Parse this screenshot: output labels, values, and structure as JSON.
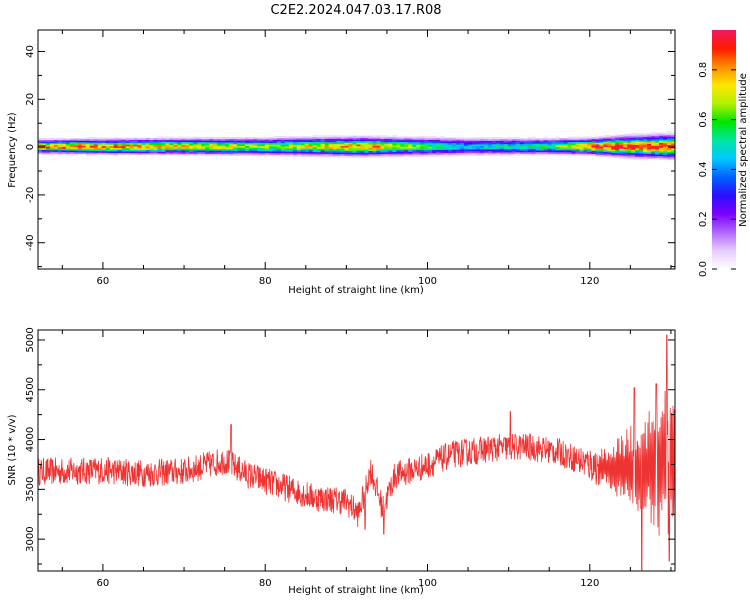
{
  "figure": {
    "title": "C2E2.2024.047.03.17.R08"
  },
  "colors": {
    "snr_line": "#ee3333",
    "axis": "#000000",
    "colormap": [
      "#ffffff",
      "#e4ccff",
      "#b266ff",
      "#7a00ff",
      "#2a10ff",
      "#0060ff",
      "#00c8ff",
      "#00e6a0",
      "#00e600",
      "#b4f000",
      "#ffe600",
      "#ff8c00",
      "#ff1a00",
      "#ee1a60"
    ]
  },
  "chart_data": [
    {
      "type": "heatmap",
      "name": "spectrogram",
      "xlabel": "Height of straight line (km)",
      "ylabel": "Frequency (Hz)",
      "xlim": [
        52,
        130.5
      ],
      "ylim": [
        -51,
        49
      ],
      "x_ticks": [
        60,
        80,
        100,
        120
      ],
      "y_ticks": [
        40,
        20,
        0,
        -20,
        -40
      ],
      "colorbar": {
        "label": "Normalized spectral amplitude",
        "range": [
          0,
          0.96
        ],
        "ticks": [
          0.0,
          0.2,
          0.4,
          0.6,
          0.8
        ]
      },
      "band": {
        "center_freq_hz": 0,
        "ridge": [
          {
            "x": 52,
            "amp": 0.85,
            "width_hz": 2.5
          },
          {
            "x": 60,
            "amp": 0.82,
            "width_hz": 2.8
          },
          {
            "x": 70,
            "amp": 0.75,
            "width_hz": 3.0
          },
          {
            "x": 80,
            "amp": 0.65,
            "width_hz": 3.2
          },
          {
            "x": 92,
            "amp": 0.8,
            "width_hz": 3.6
          },
          {
            "x": 96,
            "amp": 0.72,
            "width_hz": 3.4
          },
          {
            "x": 105,
            "amp": 0.45,
            "width_hz": 3.2
          },
          {
            "x": 115,
            "amp": 0.55,
            "width_hz": 3.0
          },
          {
            "x": 120,
            "amp": 0.85,
            "width_hz": 3.0
          },
          {
            "x": 125,
            "amp": 0.92,
            "width_hz": 4.0
          },
          {
            "x": 130,
            "amp": 0.9,
            "width_hz": 4.5
          }
        ]
      }
    },
    {
      "type": "line",
      "name": "snr",
      "xlabel": "Height of straight line (km)",
      "ylabel": "SNR (10 * v/v)",
      "xlim": [
        52,
        130.5
      ],
      "ylim": [
        2680,
        5100
      ],
      "x_ticks": [
        60,
        80,
        100,
        120
      ],
      "y_ticks": [
        5000,
        4500,
        4000,
        3500,
        3000
      ],
      "trend": [
        {
          "x": 52,
          "y": 3680
        },
        {
          "x": 55,
          "y": 3680
        },
        {
          "x": 60,
          "y": 3690
        },
        {
          "x": 65,
          "y": 3660
        },
        {
          "x": 70,
          "y": 3680
        },
        {
          "x": 75,
          "y": 3790
        },
        {
          "x": 78,
          "y": 3640
        },
        {
          "x": 82,
          "y": 3530
        },
        {
          "x": 86,
          "y": 3420
        },
        {
          "x": 90,
          "y": 3380
        },
        {
          "x": 91.5,
          "y": 3250
        },
        {
          "x": 93,
          "y": 3700
        },
        {
          "x": 94.5,
          "y": 3300
        },
        {
          "x": 96,
          "y": 3640
        },
        {
          "x": 100,
          "y": 3740
        },
        {
          "x": 103,
          "y": 3850
        },
        {
          "x": 108,
          "y": 3910
        },
        {
          "x": 112,
          "y": 3930
        },
        {
          "x": 116,
          "y": 3880
        },
        {
          "x": 120,
          "y": 3750
        },
        {
          "x": 122,
          "y": 3720
        },
        {
          "x": 126,
          "y": 3700
        },
        {
          "x": 130,
          "y": 3800
        }
      ],
      "noise_amplitude": [
        {
          "x": 52,
          "y": 140
        },
        {
          "x": 85,
          "y": 140
        },
        {
          "x": 118,
          "y": 140
        },
        {
          "x": 122,
          "y": 220
        },
        {
          "x": 126,
          "y": 500
        },
        {
          "x": 130,
          "y": 900
        }
      ],
      "spikes": [
        {
          "x": 75.8,
          "y": 4150
        },
        {
          "x": 92.3,
          "y": 3100
        },
        {
          "x": 94.6,
          "y": 3050
        },
        {
          "x": 110.2,
          "y": 4280
        },
        {
          "x": 125.5,
          "y": 4520
        },
        {
          "x": 126.4,
          "y": 2690
        },
        {
          "x": 128.2,
          "y": 4560
        },
        {
          "x": 129.5,
          "y": 5050
        },
        {
          "x": 129.8,
          "y": 2780
        }
      ]
    }
  ]
}
